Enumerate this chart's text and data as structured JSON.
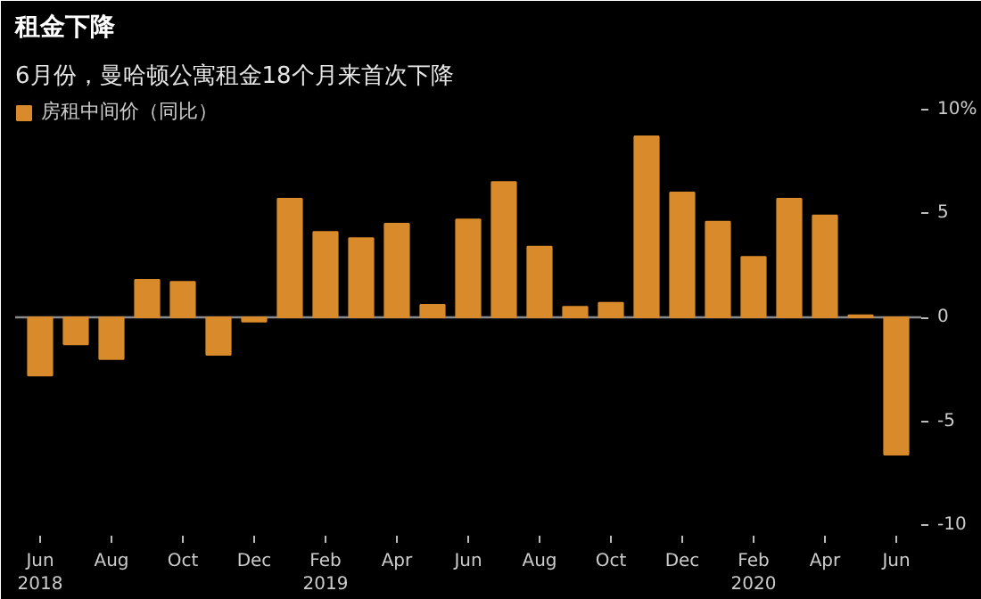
{
  "chart_data": {
    "type": "bar",
    "title": "租金下降",
    "subtitle": "6月份，曼哈顿公寓租金18个月来首次下降",
    "categories": [
      "Jun\n2018",
      null,
      "Aug",
      null,
      "Oct",
      null,
      "Dec",
      null,
      "Feb\n2019",
      null,
      "Apr",
      null,
      "Jun",
      null,
      "Aug",
      null,
      "Oct",
      null,
      "Dec",
      null,
      "Feb\n2020",
      null,
      "Apr",
      null,
      "Jun"
    ],
    "series": [
      {
        "name": "房租中间价（同比）",
        "color": "#d98b2b",
        "values": [
          -2.8,
          -1.3,
          -2.0,
          1.8,
          1.7,
          -1.8,
          -0.2,
          5.7,
          4.1,
          3.8,
          4.5,
          0.6,
          4.7,
          6.5,
          3.4,
          0.5,
          0.7,
          8.7,
          6.0,
          4.6,
          2.9,
          5.7,
          4.9,
          0.1,
          -6.6
        ]
      }
    ],
    "ylim": [
      -10.5,
      10.5
    ],
    "yticks": [
      {
        "value": 10,
        "label": "10%"
      },
      5,
      0,
      -5,
      -10
    ],
    "legend": "top left"
  }
}
